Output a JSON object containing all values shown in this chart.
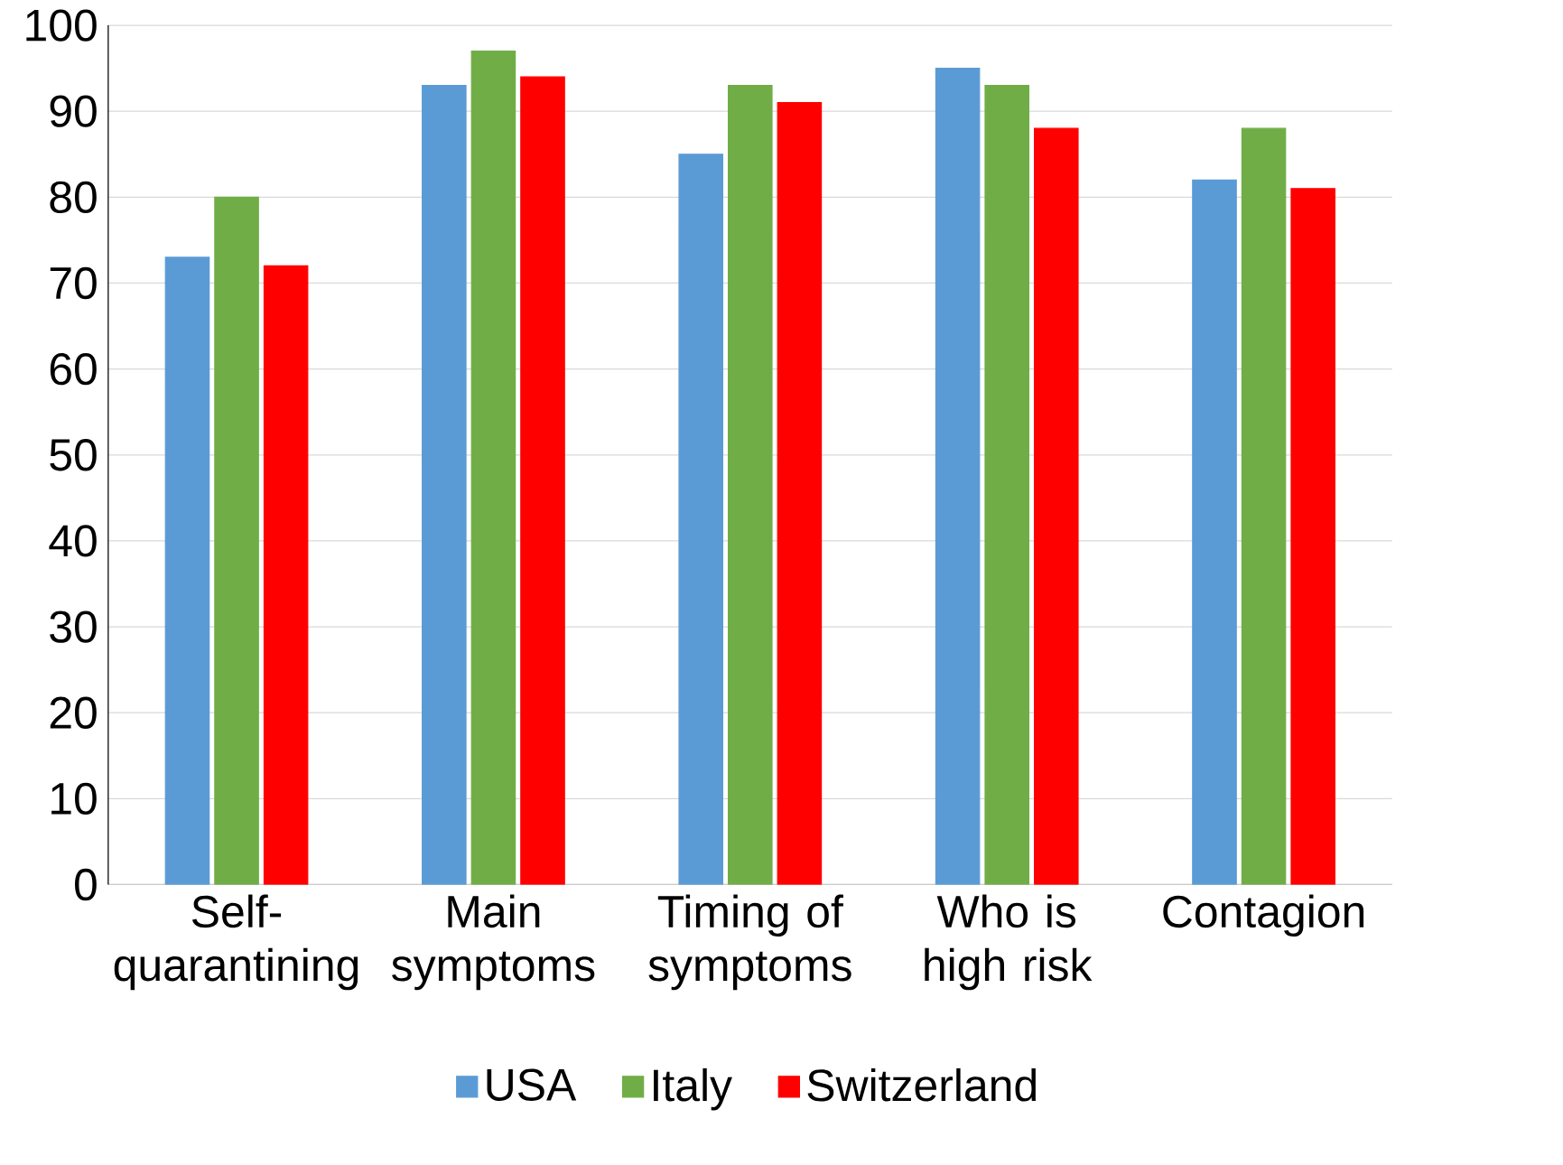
{
  "chart_data": {
    "type": "bar",
    "categories": [
      "Self-quarantining",
      "Main symptoms",
      "Timing of symptoms",
      "Who is high risk",
      "Contagion"
    ],
    "series": [
      {
        "name": "USA",
        "color": "#5b9bd5",
        "values": [
          73,
          93,
          85,
          95,
          82
        ]
      },
      {
        "name": "Italy",
        "color": "#70ad47",
        "values": [
          80,
          97,
          93,
          93,
          88
        ]
      },
      {
        "name": "Switzerland",
        "color": "#ff0000",
        "values": [
          72,
          94,
          91,
          88,
          81
        ]
      }
    ],
    "ylim": [
      0,
      100
    ],
    "yticks": [
      0,
      10,
      20,
      30,
      40,
      50,
      60,
      70,
      80,
      90,
      100
    ],
    "grid": "y",
    "legend": "bottom"
  }
}
